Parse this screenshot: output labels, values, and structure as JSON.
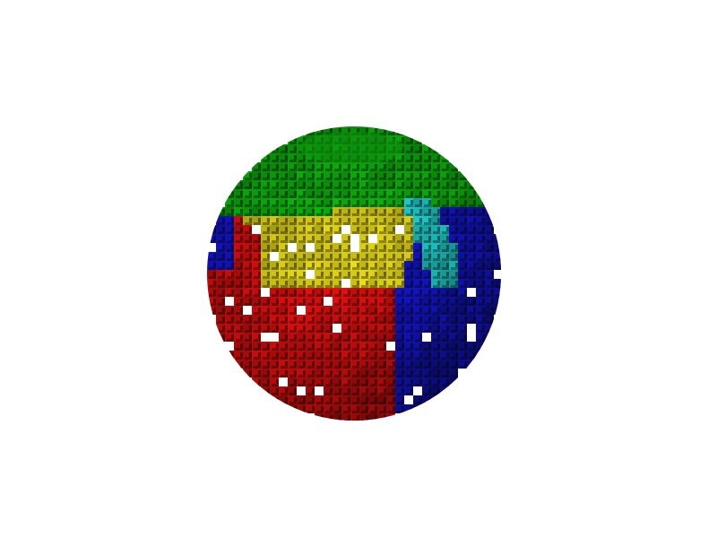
{
  "scene": {
    "subject": "voxel-sphere",
    "regions": [
      {
        "name": "green-region",
        "color": "#0fae0f"
      },
      {
        "name": "yellow-region",
        "color": "#d4c81a"
      },
      {
        "name": "red-region",
        "color": "#d10f0f"
      },
      {
        "name": "blue-region",
        "color": "#1414c8"
      },
      {
        "name": "cyan-region",
        "color": "#22c8c8"
      }
    ],
    "background_color": "#ffffff"
  }
}
